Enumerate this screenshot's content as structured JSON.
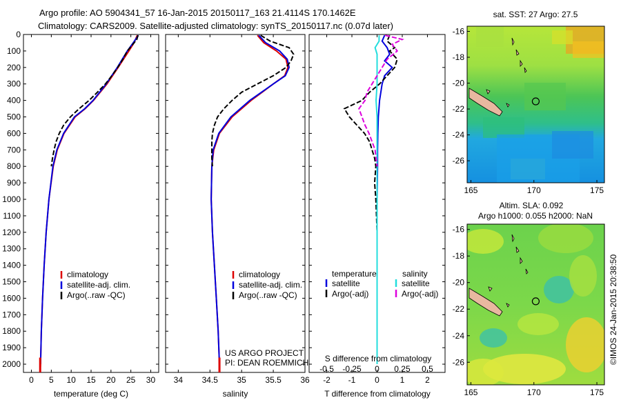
{
  "header": {
    "line1": "Argo profile: AO 5904341_57 16-Jan-2015 20150117_163 21.4114S 170.1462E",
    "line2": "Climatology: CARS2009. Satellite-adjusted climatology: synTS_20150117.nc (0.07d later)"
  },
  "colors": {
    "climatology": "#dd0000",
    "satellite_t": "#0000dd",
    "argo": "#000000",
    "satellite_s": "#22dddd",
    "argo_s": "#dd00dd",
    "land": "#e8b8a0"
  },
  "credits": {
    "project": "US ARGO PROJECT",
    "pi": "PI: DEAN ROEMMICH",
    "imos": "©IMOS 24-Jan-2015 20:38:50"
  },
  "depth_axis": {
    "ticks": [
      0,
      100,
      200,
      300,
      400,
      500,
      600,
      700,
      800,
      900,
      1000,
      1100,
      1200,
      1300,
      1400,
      1500,
      1600,
      1700,
      1800,
      1900,
      2000
    ]
  },
  "chart_data": [
    {
      "type": "line",
      "id": "temperature",
      "xlabel": "temperature (deg C)",
      "ylabel": "depth",
      "xlim": [
        -2,
        32
      ],
      "ylim": [
        2050,
        0
      ],
      "xticks": [
        0,
        5,
        10,
        15,
        20,
        25,
        30
      ],
      "legend": [
        "climatology",
        "satellite-adj. clim.",
        "Argo(..raw -QC)"
      ],
      "series": [
        {
          "name": "climatology",
          "depth": [
            5,
            50,
            100,
            200,
            300,
            400,
            450,
            500,
            600,
            700,
            800,
            1000,
            1200,
            1400,
            1600,
            1800,
            2000,
            2040
          ],
          "values": [
            26.6,
            25.8,
            24.5,
            21.8,
            19.0,
            15.6,
            13.5,
            11.0,
            8.2,
            6.5,
            5.5,
            4.4,
            3.7,
            3.2,
            2.8,
            2.5,
            2.3,
            2.2
          ]
        },
        {
          "name": "satellite-adj. clim.",
          "depth": [
            5,
            50,
            100,
            200,
            300,
            400,
            450,
            500,
            600,
            700,
            800,
            1000,
            1200,
            1400,
            1600,
            1800,
            2000
          ],
          "values": [
            26.9,
            25.6,
            24.1,
            21.6,
            18.8,
            15.5,
            13.4,
            10.8,
            8.1,
            6.4,
            5.4,
            4.4,
            3.7,
            3.2,
            2.8,
            2.5,
            2.3
          ]
        },
        {
          "name": "Argo(..raw -QC)",
          "depth": [
            5,
            30,
            60,
            100,
            150,
            200,
            250,
            300,
            350,
            400,
            450,
            500,
            550,
            600,
            650,
            700,
            750,
            800
          ],
          "values": [
            26.8,
            26.5,
            25.5,
            24.1,
            23.0,
            21.7,
            20.2,
            18.6,
            16.6,
            14.5,
            12.0,
            9.8,
            8.1,
            7.0,
            6.2,
            5.7,
            5.3,
            5.0
          ]
        }
      ]
    },
    {
      "type": "line",
      "id": "salinity",
      "xlabel": "salinity",
      "ylabel": "depth",
      "xlim": [
        33.8,
        36.0
      ],
      "ylim": [
        2050,
        0
      ],
      "xticks": [
        34,
        34.5,
        35,
        35.5,
        36
      ],
      "xtick_labels": [
        "34",
        "34.5",
        "35",
        "35.5",
        "36"
      ],
      "legend": [
        "climatology",
        "satellite-adj. clim.",
        "Argo(..raw -QC)"
      ],
      "series": [
        {
          "name": "climatology",
          "depth": [
            5,
            50,
            100,
            150,
            200,
            250,
            300,
            400,
            500,
            600,
            700,
            800,
            1000,
            1200,
            1400,
            1600,
            1800,
            2000,
            2040
          ],
          "values": [
            35.25,
            35.35,
            35.55,
            35.7,
            35.73,
            35.68,
            35.5,
            35.15,
            34.85,
            34.65,
            34.56,
            34.53,
            34.52,
            34.54,
            34.57,
            34.6,
            34.63,
            34.65,
            34.65
          ]
        },
        {
          "name": "satellite-adj. clim.",
          "depth": [
            5,
            50,
            100,
            150,
            200,
            250,
            300,
            400,
            500,
            600,
            700,
            800,
            1000,
            1200,
            1400,
            1600,
            1800,
            2000
          ],
          "values": [
            35.27,
            35.38,
            35.6,
            35.72,
            35.75,
            35.69,
            35.5,
            35.13,
            34.83,
            34.64,
            34.55,
            34.53,
            34.52,
            34.54,
            34.57,
            34.6,
            34.63,
            34.65
          ]
        },
        {
          "name": "Argo(..raw -QC)",
          "depth": [
            5,
            40,
            80,
            120,
            160,
            200,
            250,
            300,
            350,
            400,
            450,
            500,
            550,
            600,
            650,
            700,
            750,
            800
          ],
          "values": [
            35.3,
            35.45,
            35.75,
            35.82,
            35.78,
            35.7,
            35.5,
            35.25,
            35.0,
            34.85,
            34.72,
            34.62,
            34.57,
            34.54,
            34.53,
            34.53,
            34.53,
            34.54
          ]
        }
      ]
    },
    {
      "type": "line",
      "id": "difference",
      "xlabel": "T difference from climatology",
      "x2label": "S difference from climatology",
      "ylabel": "depth",
      "xlim": [
        -2.7,
        2.7
      ],
      "ylim": [
        2050,
        0
      ],
      "xticks": [
        -2,
        -1,
        0,
        1,
        2
      ],
      "s_ticks": [
        -0.5,
        -0.25,
        0,
        0.25,
        0.5
      ],
      "s_tick_labels": [
        "-0.5",
        "-0.25",
        "0",
        "0.25",
        "0.5"
      ],
      "s_scale_factor": 4,
      "legend_t": [
        "temperature",
        "satellite",
        "Argo(-adj)"
      ],
      "legend_s": [
        "salinity",
        "satellite",
        "Argo(-adj)"
      ],
      "series": [
        {
          "name": "T satellite",
          "depth": [
            5,
            40,
            80,
            120,
            160,
            200,
            250,
            300,
            400,
            500,
            600,
            700,
            800,
            1000,
            1500,
            2000
          ],
          "values": [
            0.3,
            0.2,
            0.4,
            0.5,
            0.3,
            0.6,
            0.3,
            0.2,
            0.1,
            0.05,
            0.03,
            0.02,
            0.02,
            0.0,
            0.0,
            0.0
          ]
        },
        {
          "name": "T Argo(-adj)",
          "depth": [
            5,
            40,
            80,
            100,
            150,
            200,
            300,
            350,
            400,
            450,
            500,
            550,
            600,
            650,
            700,
            750,
            800,
            900,
            1000,
            1200
          ],
          "values": [
            0.5,
            0.4,
            0.7,
            0.5,
            0.8,
            0.7,
            0.1,
            -0.3,
            -0.6,
            -1.3,
            -1.1,
            -0.8,
            -0.5,
            -0.3,
            -0.2,
            -0.1,
            -0.05,
            -0.1,
            -0.05,
            0.0
          ]
        },
        {
          "name": "S satellite",
          "depth": [
            5,
            40,
            80,
            120,
            160,
            200,
            300,
            400,
            500,
            600,
            800,
            1000,
            1500,
            2000
          ],
          "values": [
            0.02,
            0.02,
            -0.02,
            0.0,
            0.0,
            0.0,
            0.0,
            -0.01,
            0.0,
            0.0,
            0.0,
            0.0,
            0.0,
            0.0
          ]
        },
        {
          "name": "S Argo(-adj)",
          "depth": [
            5,
            30,
            60,
            100,
            150,
            200,
            250,
            300,
            350,
            400,
            450,
            500,
            550,
            600,
            650,
            700,
            800
          ],
          "values": [
            0.08,
            0.25,
            0.15,
            0.2,
            0.1,
            0.05,
            0.0,
            -0.05,
            -0.1,
            -0.12,
            -0.18,
            -0.15,
            -0.12,
            -0.08,
            -0.05,
            -0.02,
            0.0
          ]
        }
      ]
    },
    {
      "type": "heatmap",
      "id": "sst_map",
      "title": "sat. SST: 27 Argo: 27.5",
      "xlim": [
        164.7,
        175.6
      ],
      "ylim": [
        -27.7,
        -15.6
      ],
      "xticks": [
        165,
        170,
        175
      ],
      "yticks": [
        -16,
        -18,
        -20,
        -22,
        -24,
        -26
      ],
      "argo_position": {
        "lon": 170.1462,
        "lat": -21.4114
      }
    },
    {
      "type": "heatmap",
      "id": "sla_map",
      "title": "Altim. SLA: 0.092",
      "subtitle": "Argo h1000: 0.055 h2000: NaN",
      "xlim": [
        164.7,
        175.6
      ],
      "ylim": [
        -27.7,
        -15.6
      ],
      "xticks": [
        165,
        170,
        175
      ],
      "yticks": [
        -16,
        -18,
        -20,
        -22,
        -24,
        -26
      ],
      "argo_position": {
        "lon": 170.1462,
        "lat": -21.4114
      }
    }
  ]
}
